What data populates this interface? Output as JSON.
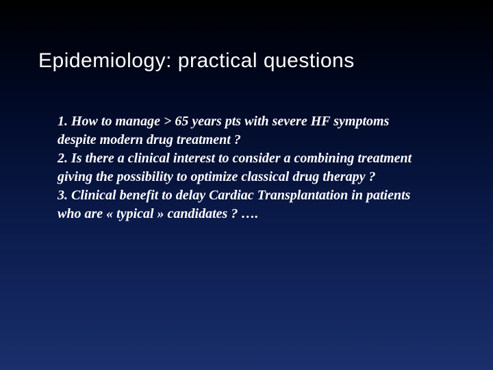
{
  "slide": {
    "title": "Epidemiology: practical questions",
    "items": [
      "1. How to manage > 65 years pts with severe HF symptoms despite modern drug treatment ?",
      "2. Is there a clinical interest to consider a combining treatment giving the possibility to optimize classical drug therapy ?",
      "3. Clinical benefit to delay Cardiac Transplantation in patients who are « typical » candidates ? …."
    ],
    "background_gradient": [
      "#000000",
      "#000822",
      "#0a1a4a",
      "#1a2f6b"
    ],
    "text_color": "#ffffff",
    "title_fontsize": 30,
    "body_fontsize": 20
  }
}
